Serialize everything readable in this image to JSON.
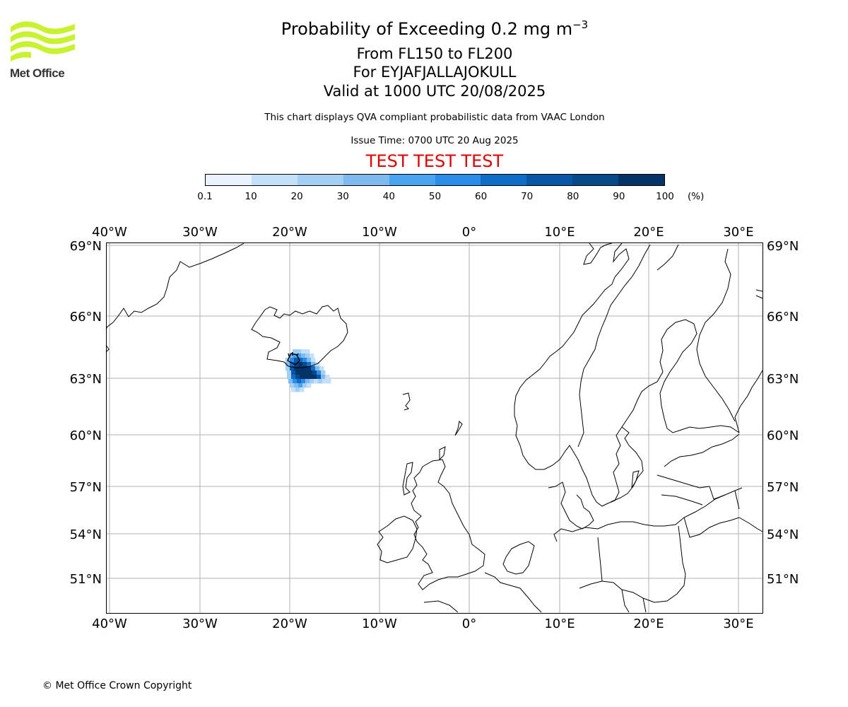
{
  "logo": {
    "label": "Met Office",
    "icon": "met-office-waves-logo"
  },
  "title": {
    "main": "Probability of Exceeding 0.2 mg m",
    "superscript": "−3",
    "levels": "From FL150 to FL200",
    "volcano": "For EYJAFJALLAJOKULL",
    "valid": "Valid at 1000 UTC 20/08/2025"
  },
  "subtitle": "This chart displays QVA compliant probabilistic data from VAAC London",
  "issue_time": "Issue Time: 0700 UTC 20 Aug 2025",
  "test_banner": "TEST TEST TEST",
  "colorbar": {
    "ticks": [
      "0.1",
      "10",
      "20",
      "30",
      "40",
      "50",
      "60",
      "70",
      "80",
      "90",
      "100"
    ],
    "unit": "(%)",
    "colors": [
      "#e8f3fd",
      "#c4e0f8",
      "#a3cff5",
      "#7dbaf0",
      "#4aa3ee",
      "#2b8de8",
      "#0f6dc8",
      "#0856a8",
      "#064a8a",
      "#043367"
    ]
  },
  "map": {
    "lon_labels": [
      "40°W",
      "30°W",
      "20°W",
      "10°W",
      "0°",
      "10°E",
      "20°E",
      "30°E"
    ],
    "lat_labels": [
      "69°N",
      "66°N",
      "63°N",
      "60°N",
      "57°N",
      "54°N",
      "51°N"
    ],
    "grid": true,
    "coastline_color": "#000000",
    "grid_color": "#b0b0b0"
  },
  "copyright": "© Met Office Crown Copyright"
}
